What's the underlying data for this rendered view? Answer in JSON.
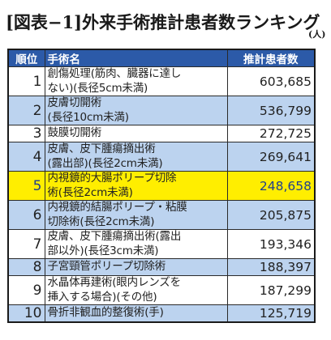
{
  "title": "[図表−1]外来手術推計患者数ランキング",
  "unit": "(人)",
  "table": {
    "headers": [
      "順位",
      "手術名",
      "推計患者数"
    ],
    "rows": [
      {
        "rank": "1",
        "lines": [
          "創傷処理(筋肉、臓器に達し",
          "ない)(長径5cm未満)"
        ],
        "count": "603,685"
      },
      {
        "rank": "2",
        "lines": [
          "皮膚切開術",
          "(長径10cm未満)"
        ],
        "count": "536,799"
      },
      {
        "rank": "3",
        "lines": [
          "鼓膜切開術"
        ],
        "count": "272,725"
      },
      {
        "rank": "4",
        "lines": [
          "皮膚、皮下腫瘍摘出術",
          "(露出部)(長径2cm未満)"
        ],
        "count": "269,641"
      },
      {
        "rank": "5",
        "lines": [
          "内視鏡的大腸ポリープ切除",
          "術(長径2cm未満)"
        ],
        "count": "248,658"
      },
      {
        "rank": "6",
        "lines": [
          "内視鏡的結腸ポリープ・粘膜",
          "切除術(長径2cm未満)"
        ],
        "count": "205,875"
      },
      {
        "rank": "7",
        "lines": [
          "皮膚、皮下腫瘍摘出術(露出",
          "部以外)(長径3cm未満)"
        ],
        "count": "193,346"
      },
      {
        "rank": "8",
        "lines": [
          "子宮頸管ポリープ切除術"
        ],
        "count": "188,397"
      },
      {
        "rank": "9",
        "lines": [
          "水晶体再建術(眼内レンズを",
          "挿入する場合)(その他)"
        ],
        "count": "187,299"
      },
      {
        "rank": "10",
        "lines": [
          "骨折非観血的整復術(手)"
        ],
        "count": "125,719"
      }
    ]
  },
  "colors": {
    "header_bg": "#2c5aa8",
    "stripe_blue": "#bcd3ef",
    "highlight_yellow": "#ffee00",
    "highlight_text": "#1f3f8f"
  }
}
